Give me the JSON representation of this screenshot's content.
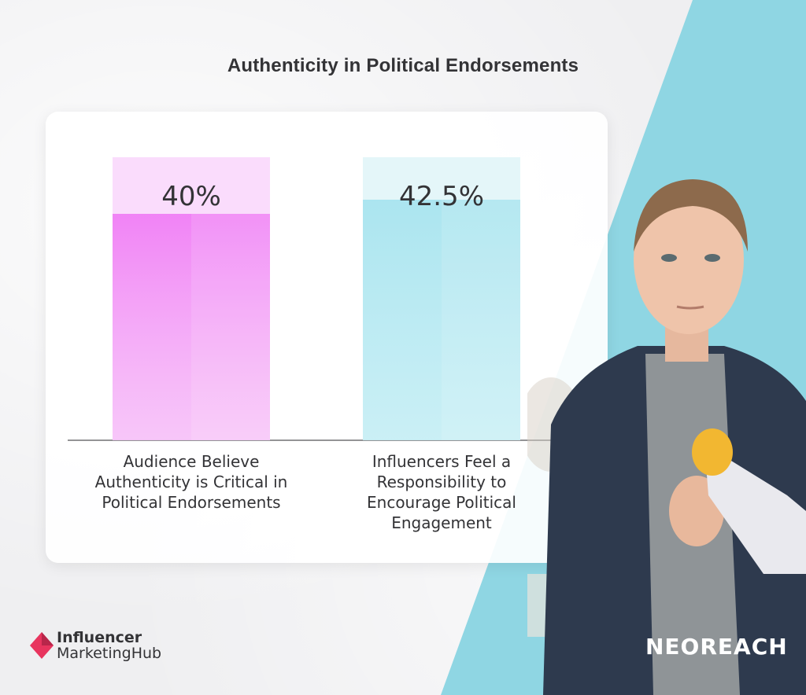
{
  "chart_data": {
    "type": "bar",
    "title": "Authenticity in Political Endorsements",
    "categories": [
      [
        "Audience Believe",
        "Authenticity is Critical in",
        "Political Endorsements"
      ],
      [
        "Influencers Feel a",
        "Responsibility to",
        "Encourage Political",
        "Engagement"
      ]
    ],
    "values": [
      40,
      42.5
    ],
    "value_labels": [
      "40%",
      "42.5%"
    ],
    "ylim": [
      0,
      50
    ],
    "colors": [
      "#f07ef5",
      "#a8e4ef"
    ],
    "grid": false,
    "legend": "none"
  },
  "branding": {
    "left_logo_line1": "Influencer",
    "left_logo_line2": "MarketingHub",
    "right_logo": "NEOREACH",
    "logo_accent": "#e8345e"
  },
  "colors": {
    "background": "#efeff1",
    "teal_band": "#8fd6e3",
    "text": "#333336"
  }
}
